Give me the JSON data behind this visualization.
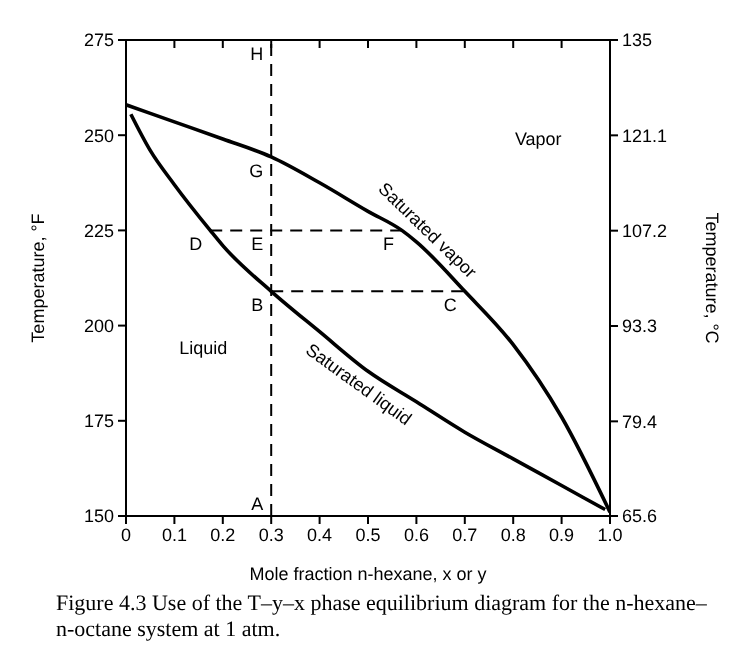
{
  "chart_data": {
    "type": "line",
    "xlabel": "Mole fraction n-hexane, x or y",
    "ylabel": "Temperature, °F",
    "y2label": "Temperature, °C",
    "xlim": [
      0,
      1
    ],
    "xticks": [
      0,
      0.1,
      0.2,
      0.3,
      0.4,
      0.5,
      0.6,
      0.7,
      0.8,
      0.9,
      {
        "value": 1,
        "label": "1.0"
      }
    ],
    "ylim": [
      150,
      275
    ],
    "yticks": [
      150,
      175,
      200,
      225,
      250,
      275
    ],
    "y2lim": [
      65.6,
      135
    ],
    "y2ticks": [
      65.6,
      79.4,
      93.3,
      107.2,
      121.1,
      135
    ],
    "grid": false,
    "marker": "none",
    "series": [
      {
        "name": "Saturated vapor",
        "color": "#000000",
        "x": [
          0,
          0.1,
          0.2,
          0.3,
          0.4,
          0.5,
          0.57,
          0.6,
          0.7,
          0.8,
          0.9,
          1
        ],
        "values": [
          258,
          253.5,
          249,
          244.3,
          237.5,
          230,
          225,
          222,
          209,
          195,
          176,
          151
        ]
      },
      {
        "name": "Saturated liquid",
        "color": "#000000",
        "x": [
          0.01,
          0.05,
          0.1,
          0.174,
          0.2,
          0.3,
          0.4,
          0.5,
          0.6,
          0.7,
          0.8,
          0.9,
          0.99
        ],
        "values": [
          255.5,
          246,
          237,
          225,
          221,
          209,
          198.4,
          188,
          180,
          172,
          165,
          158,
          151.7
        ]
      },
      {
        "color": "#000000",
        "line_style": "dashed",
        "x": [
          0.174,
          0.57
        ],
        "values": [
          225,
          225
        ]
      },
      {
        "color": "#000000",
        "line_style": "dashed",
        "x": [
          0.3,
          0.7
        ],
        "values": [
          209,
          209
        ]
      }
    ],
    "ref_lines": [
      {
        "axis": "x",
        "value": 0.3,
        "color": "#000000",
        "line_style": "dashed"
      }
    ],
    "annotations": [
      {
        "text": "H",
        "x": 0.3,
        "y": 275
      },
      {
        "text": "G",
        "x": 0.3,
        "y": 244.3
      },
      {
        "text": "D",
        "x": 0.174,
        "y": 225
      },
      {
        "text": "E",
        "x": 0.3,
        "y": 225
      },
      {
        "text": "F",
        "x": 0.57,
        "y": 225
      },
      {
        "text": "B",
        "x": 0.3,
        "y": 209
      },
      {
        "text": "C",
        "x": 0.7,
        "y": 209
      },
      {
        "text": "A",
        "x": 0.3,
        "y": 150
      },
      "Vapor",
      "Liquid",
      "Figure 4.3 Use of the T–y–x phase equilibrium diagram for the n-hexane–n-octane system at 1 atm."
    ]
  }
}
